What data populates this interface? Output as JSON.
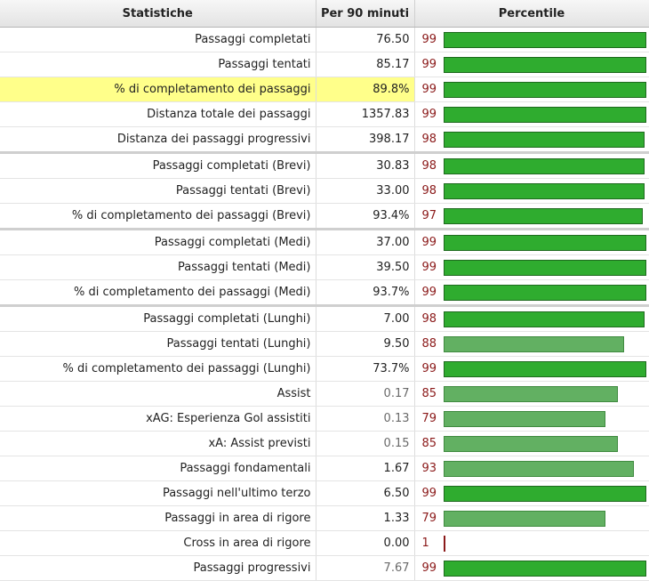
{
  "headers": {
    "stat": "Statistiche",
    "per90": "Per 90 minuti",
    "percentile": "Percentile"
  },
  "rows": [
    {
      "stat": "Passaggi completati",
      "value": "76.50",
      "percentile": 99
    },
    {
      "stat": "Passaggi tentati",
      "value": "85.17",
      "percentile": 99
    },
    {
      "stat": "% di completamento dei passaggi",
      "value": "89.8%",
      "percentile": 99
    },
    {
      "stat": "Distanza totale dei passaggi",
      "value": "1357.83",
      "percentile": 99
    },
    {
      "stat": "Distanza dei passaggi progressivi",
      "value": "398.17",
      "percentile": 98
    },
    {
      "stat": "Passaggi completati (Brevi)",
      "value": "30.83",
      "percentile": 98
    },
    {
      "stat": "Passaggi tentati (Brevi)",
      "value": "33.00",
      "percentile": 98
    },
    {
      "stat": "% di completamento dei passaggi (Brevi)",
      "value": "93.4%",
      "percentile": 97
    },
    {
      "stat": "Passaggi completati (Medi)",
      "value": "37.00",
      "percentile": 99
    },
    {
      "stat": "Passaggi tentati (Medi)",
      "value": "39.50",
      "percentile": 99
    },
    {
      "stat": "% di completamento dei passaggi (Medi)",
      "value": "93.7%",
      "percentile": 99
    },
    {
      "stat": "Passaggi completati (Lunghi)",
      "value": "7.00",
      "percentile": 98
    },
    {
      "stat": "Passaggi tentati (Lunghi)",
      "value": "9.50",
      "percentile": 88
    },
    {
      "stat": "% di completamento dei passaggi (Lunghi)",
      "value": "73.7%",
      "percentile": 99
    },
    {
      "stat": "Assist",
      "value": "0.17",
      "percentile": 85
    },
    {
      "stat": "xAG: Esperienza Gol assistiti",
      "value": "0.13",
      "percentile": 79
    },
    {
      "stat": "xA: Assist previsti",
      "value": "0.15",
      "percentile": 85
    },
    {
      "stat": "Passaggi fondamentali",
      "value": "1.67",
      "percentile": 93
    },
    {
      "stat": "Passaggi nell'ultimo terzo",
      "value": "6.50",
      "percentile": 99
    },
    {
      "stat": "Passaggi in area di rigore",
      "value": "1.33",
      "percentile": 79
    },
    {
      "stat": "Cross in area di rigore",
      "value": "0.00",
      "percentile": 1
    },
    {
      "stat": "Passaggi progressivi",
      "value": "7.67",
      "percentile": 99
    }
  ],
  "highlighted_row": 2,
  "group_starts": [
    5,
    8,
    11
  ],
  "grey_value_rows": [
    14,
    15,
    16,
    21
  ],
  "colors": {
    "bar_high": "#2fac2f",
    "bar_mid": "#62b062",
    "bar_low": "#8b1a1a",
    "highlight": "#ffff8a",
    "percentile_text": "#8b1a1a"
  }
}
